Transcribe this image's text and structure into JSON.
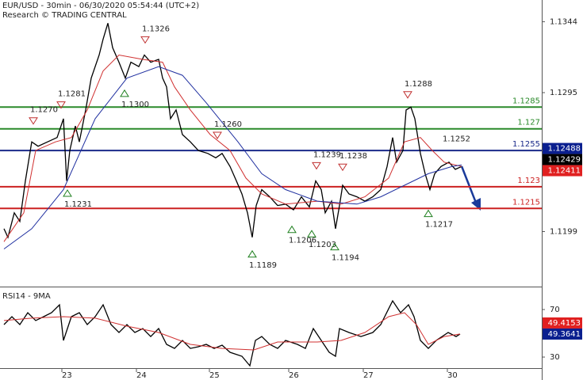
{
  "chart_data": [
    {
      "type": "line",
      "title": "EUR/USD - 30min - 06/30/2020 05:54:44 (UTC+2)",
      "subtitle": "Research © TRADING CENTRAL",
      "xlim": [
        0,
        339.5
      ],
      "ylim": [
        1.1161,
        1.1359
      ],
      "yticks": [
        1.1344,
        1.1295,
        1.1199
      ],
      "series": [
        {
          "color": "#000000",
          "x": [
            0.5,
            3,
            7,
            10.5,
            14,
            18,
            22,
            28,
            34,
            38,
            40,
            42,
            45.5,
            48,
            52,
            55.5,
            60.5,
            63,
            66,
            69,
            73,
            77,
            80.5,
            85.5,
            89,
            93,
            98,
            100.5,
            103,
            105.5,
            109,
            113,
            118,
            123,
            129,
            134,
            138,
            143,
            147,
            150.5,
            154,
            157,
            159.5,
            163,
            168,
            173,
            178,
            183,
            188,
            193,
            197,
            200.5,
            203,
            207,
            209.5,
            212,
            214,
            218,
            223,
            228,
            233,
            238,
            242,
            245.5,
            248,
            252,
            254,
            257,
            259.5,
            263,
            266,
            269,
            272,
            276,
            281,
            285,
            289
          ],
          "values": [
            1.1201,
            1.1195,
            1.1212,
            1.1206,
            1.1234,
            1.1261,
            1.1258,
            1.1261,
            1.1264,
            1.1277,
            1.1234,
            1.1255,
            1.1272,
            1.1261,
            1.1283,
            1.1305,
            1.1321,
            1.1332,
            1.1343,
            1.1326,
            1.1316,
            1.1305,
            1.1316,
            1.1313,
            1.1321,
            1.1316,
            1.1318,
            1.1305,
            1.1299,
            1.1277,
            1.1283,
            1.1266,
            1.1261,
            1.1255,
            1.1253,
            1.125,
            1.1253,
            1.1244,
            1.1234,
            1.1225,
            1.1212,
            1.1195,
            1.1217,
            1.1228,
            1.1223,
            1.1217,
            1.1218,
            1.1214,
            1.1223,
            1.1216,
            1.1234,
            1.1228,
            1.1212,
            1.122,
            1.1201,
            1.1217,
            1.1231,
            1.1225,
            1.1223,
            1.122,
            1.1223,
            1.1228,
            1.1244,
            1.1264,
            1.1247,
            1.1255,
            1.1283,
            1.1285,
            1.1277,
            1.1253,
            1.1239,
            1.1228,
            1.1239,
            1.1244,
            1.1247,
            1.1242,
            1.1244
          ]
        },
        {
          "color": "#d03030",
          "x": [
            0.5,
            13,
            20.5,
            33,
            43,
            53,
            63,
            73,
            88,
            100.5,
            108,
            118,
            130.5,
            143,
            153,
            163,
            178,
            198,
            213,
            228,
            243,
            253,
            263,
            270.5,
            278,
            289
          ],
          "values": [
            1.1192,
            1.1212,
            1.1255,
            1.1261,
            1.1264,
            1.1283,
            1.131,
            1.1321,
            1.1318,
            1.1316,
            1.1299,
            1.1283,
            1.1266,
            1.1255,
            1.1236,
            1.1225,
            1.1218,
            1.122,
            1.1218,
            1.1223,
            1.1236,
            1.1261,
            1.1264,
            1.1255,
            1.1247,
            1.1244
          ]
        },
        {
          "color": "#2030a0",
          "x": [
            0.5,
            18,
            38,
            58,
            78,
            98,
            113,
            128,
            148,
            163,
            178,
            198,
            223,
            238,
            253,
            268,
            283,
            289
          ],
          "values": [
            1.1187,
            1.1201,
            1.1228,
            1.1277,
            1.1305,
            1.1313,
            1.1307,
            1.1288,
            1.1261,
            1.1239,
            1.1228,
            1.122,
            1.1218,
            1.1223,
            1.1231,
            1.1239,
            1.1244,
            1.1245
          ]
        }
      ],
      "levels": [
        {
          "value": 1.1285,
          "color": "#2a8a2a"
        },
        {
          "value": 1.127,
          "color": "#2a8a2a"
        },
        {
          "value": 1.1255,
          "color": "#1a2a8a"
        },
        {
          "value": 1.123,
          "color": "#cc2020"
        },
        {
          "value": 1.1215,
          "color": "#cc2020"
        }
      ],
      "last_values": [
        {
          "value": 1.12488,
          "color": "#0a1f8f"
        },
        {
          "value": 1.12429,
          "color": "#000000"
        },
        {
          "value": 1.12411,
          "color": "#e02020"
        }
      ],
      "annotations": [
        {
          "value": 1.127,
          "label": "1.1270"
        },
        {
          "value": 1.1281,
          "label": "1.1281"
        },
        {
          "value": 1.1326,
          "label": "1.1326"
        },
        {
          "value": 1.13,
          "label": "1.1300"
        },
        {
          "value": 1.1231,
          "label": "1.1231"
        },
        {
          "value": 1.126,
          "label": "1.1260"
        },
        {
          "value": 1.1189,
          "label": "1.1189"
        },
        {
          "value": 1.1239,
          "label": "1.1239"
        },
        {
          "value": 1.1238,
          "label": "1.1238"
        },
        {
          "value": 1.1206,
          "label": "1.1206"
        },
        {
          "value": 1.1203,
          "label": "1.1203"
        },
        {
          "value": 1.1194,
          "label": "1.1194"
        },
        {
          "value": 1.1288,
          "label": "1.1288"
        },
        {
          "value": 1.1252,
          "label": "1.1252"
        },
        {
          "value": 1.1217,
          "label": "1.1217"
        }
      ]
    },
    {
      "type": "line",
      "title": "RSI14 - 9MA",
      "xlim": [
        0,
        339.5
      ],
      "xticks": [
        {
          "value": 37,
          "label": "23"
        },
        {
          "value": 84,
          "label": "24"
        },
        {
          "value": 130,
          "label": "25"
        },
        {
          "value": 180,
          "label": "26"
        },
        {
          "value": 227,
          "label": "27"
        },
        {
          "value": 280,
          "label": "30"
        }
      ],
      "ylim": [
        20.7,
        85.3
      ],
      "yticks": [
        70,
        30
      ],
      "series": [
        {
          "color": "#000000",
          "x": [
            0.5,
            5.5,
            10.5,
            15.5,
            20.5,
            25.5,
            30.5,
            35.5,
            38,
            43,
            48,
            53,
            58,
            63,
            68,
            73,
            78,
            83,
            88,
            93,
            98,
            103,
            108,
            113,
            118,
            123,
            128,
            133,
            138,
            143,
            150.5,
            155.5,
            159,
            163,
            168,
            173,
            178,
            185.5,
            190.5,
            195.5,
            200.5,
            205.5,
            209.5,
            212,
            218,
            225.5,
            233,
            238,
            243,
            245.5,
            250.5,
            255.5,
            259,
            263,
            268,
            273,
            280.5,
            285.5,
            288
          ],
          "values": [
            57.3,
            64,
            57.3,
            67.3,
            60.7,
            64,
            67.3,
            74,
            44,
            64,
            67.3,
            57.3,
            64,
            74,
            57.3,
            50.7,
            57.3,
            50.7,
            54,
            47.3,
            54,
            40.7,
            37.3,
            44,
            37.3,
            38.7,
            40.7,
            37.3,
            40,
            34,
            30.7,
            22.7,
            44,
            47.3,
            40.7,
            37.3,
            44,
            40.7,
            37.3,
            54,
            44,
            34,
            30.7,
            54,
            50.7,
            47.3,
            50.7,
            57.3,
            70.7,
            77.3,
            67.3,
            74,
            64,
            44,
            37.3,
            44,
            50.7,
            47.3,
            49.4
          ]
        },
        {
          "color": "#d03030",
          "x": [
            0.5,
            18,
            38,
            58,
            78,
            98,
            118,
            138,
            158,
            173,
            198,
            213,
            228,
            243,
            253,
            260.5,
            268,
            278,
            288
          ],
          "values": [
            60.7,
            62.7,
            64,
            62.7,
            56,
            50.7,
            40.7,
            37.3,
            36,
            42.7,
            42.7,
            44,
            50.7,
            64,
            67.3,
            57.3,
            40.7,
            47.3,
            49.4
          ]
        }
      ],
      "last_values": [
        {
          "value": 49.4153,
          "color": "#e02020"
        },
        {
          "value": 49.3641,
          "color": "#0a1f8f"
        }
      ]
    }
  ]
}
